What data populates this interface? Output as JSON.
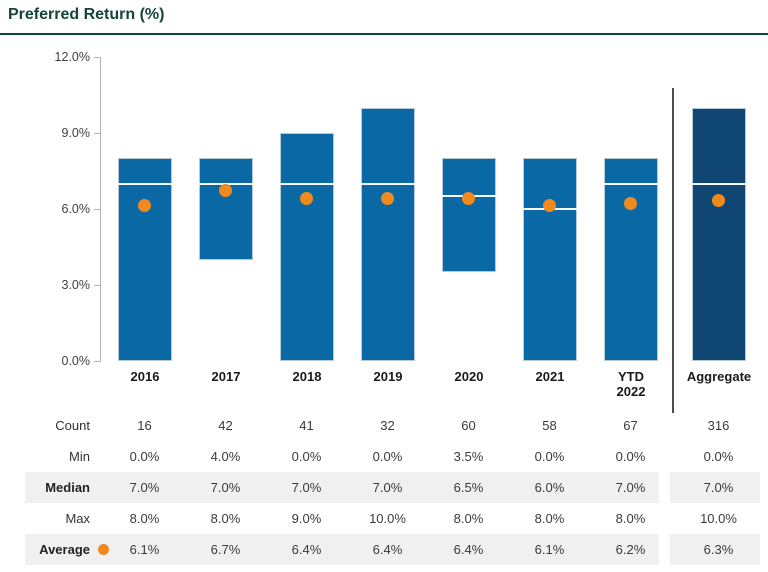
{
  "title": "Preferred Return (%)",
  "colors": {
    "title": "#15443a",
    "bar": "#0a68a5",
    "aggregate_bar": "#0f4674",
    "bar_border": "#b5c9d6",
    "median_line": "#f7fafc",
    "average_dot": "#f18a1d",
    "axis": "#b3b3b3",
    "separator": "#4d4d4d",
    "stripe": "#f0f0f0"
  },
  "chart_data": {
    "type": "floating-bar",
    "title": "Preferred Return (%)",
    "description": "Bars span min-to-max preferred return; white line marks median; orange dot marks average.",
    "ylim": [
      0,
      12
    ],
    "yticks": [
      {
        "value": 12,
        "label": "12.0%"
      },
      {
        "value": 9,
        "label": "9.0%"
      },
      {
        "value": 6,
        "label": "6.0%"
      },
      {
        "value": 3,
        "label": "3.0%"
      },
      {
        "value": 0,
        "label": "0.0%"
      }
    ],
    "categories": [
      "2016",
      "2017",
      "2018",
      "2019",
      "2020",
      "2021",
      "YTD\n2022",
      "Aggregate"
    ],
    "separator_before": "Aggregate",
    "series": [
      {
        "name": "Count",
        "values": [
          16,
          42,
          41,
          32,
          60,
          58,
          67,
          316
        ]
      },
      {
        "name": "Min",
        "values": [
          0.0,
          4.0,
          0.0,
          0.0,
          3.5,
          0.0,
          0.0,
          0.0
        ]
      },
      {
        "name": "Median",
        "values": [
          7.0,
          7.0,
          7.0,
          7.0,
          6.5,
          6.0,
          7.0,
          7.0
        ]
      },
      {
        "name": "Max",
        "values": [
          8.0,
          8.0,
          9.0,
          10.0,
          8.0,
          8.0,
          8.0,
          10.0
        ]
      },
      {
        "name": "Average",
        "values": [
          6.1,
          6.7,
          6.4,
          6.4,
          6.4,
          6.1,
          6.2,
          6.3
        ]
      }
    ]
  },
  "table": {
    "rows": [
      {
        "label": "Count",
        "bold": false,
        "striped": false,
        "dot": false,
        "values": [
          "16",
          "42",
          "41",
          "32",
          "60",
          "58",
          "67",
          "316"
        ]
      },
      {
        "label": "Min",
        "bold": false,
        "striped": false,
        "dot": false,
        "values": [
          "0.0%",
          "4.0%",
          "0.0%",
          "0.0%",
          "3.5%",
          "0.0%",
          "0.0%",
          "0.0%"
        ]
      },
      {
        "label": "Median",
        "bold": true,
        "striped": true,
        "dot": false,
        "values": [
          "7.0%",
          "7.0%",
          "7.0%",
          "7.0%",
          "6.5%",
          "6.0%",
          "7.0%",
          "7.0%"
        ]
      },
      {
        "label": "Max",
        "bold": false,
        "striped": false,
        "dot": false,
        "values": [
          "8.0%",
          "8.0%",
          "9.0%",
          "10.0%",
          "8.0%",
          "8.0%",
          "8.0%",
          "10.0%"
        ]
      },
      {
        "label": "Average",
        "bold": true,
        "striped": true,
        "dot": true,
        "values": [
          "6.1%",
          "6.7%",
          "6.4%",
          "6.4%",
          "6.4%",
          "6.1%",
          "6.2%",
          "6.3%"
        ]
      }
    ]
  }
}
